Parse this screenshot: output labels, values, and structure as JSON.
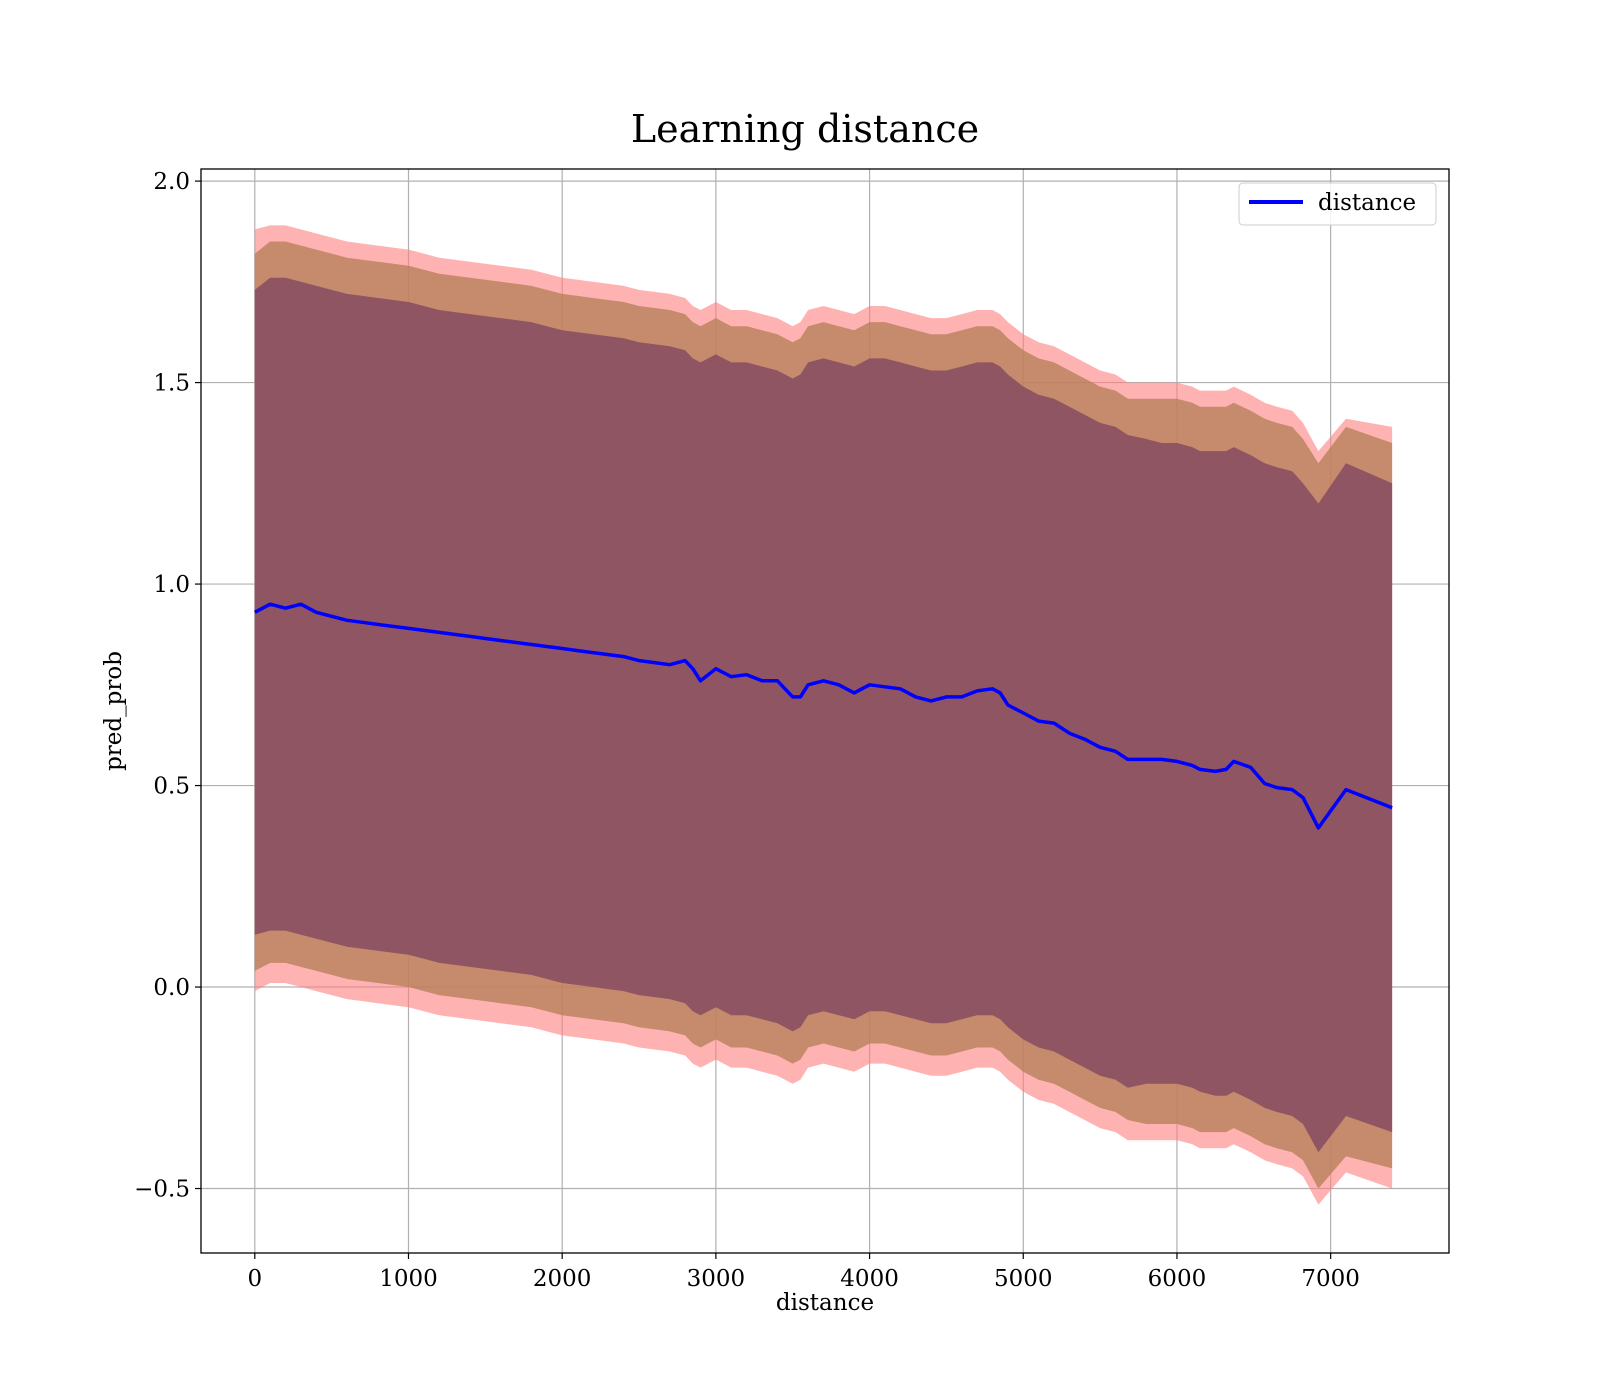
{
  "chart_data": {
    "type": "line",
    "title": "Learning distance",
    "xlabel": "distance",
    "ylabel": "pred_prob",
    "xlim": [
      -350,
      7770
    ],
    "ylim": [
      -0.66,
      2.03
    ],
    "grid": true,
    "legend_position": "top-right",
    "x_ticks": [
      "0",
      "1000",
      "2000",
      "3000",
      "4000",
      "5000",
      "6000",
      "7000"
    ],
    "x_tick_values": [
      0,
      1000,
      2000,
      3000,
      4000,
      5000,
      6000,
      7000
    ],
    "y_ticks": [
      "−0.5",
      "0.0",
      "0.5",
      "1.0",
      "1.5",
      "2.0"
    ],
    "y_tick_values": [
      -0.5,
      0.0,
      0.5,
      1.0,
      1.5,
      2.0
    ],
    "colors": {
      "line": "#0000ff",
      "outer_band": "#ff7f7f",
      "middle_band": "#b8805a",
      "inner_band": "#8a4f62"
    },
    "series": [
      {
        "name": "distance",
        "x": [
          0,
          100,
          200,
          300,
          400,
          500,
          600,
          700,
          800,
          900,
          1000,
          1100,
          1200,
          1300,
          1400,
          1500,
          1600,
          1700,
          1800,
          1900,
          2000,
          2100,
          2200,
          2300,
          2400,
          2500,
          2600,
          2700,
          2800,
          2850,
          2900,
          3000,
          3100,
          3200,
          3300,
          3400,
          3500,
          3550,
          3600,
          3700,
          3800,
          3900,
          4000,
          4100,
          4200,
          4300,
          4400,
          4500,
          4600,
          4700,
          4800,
          4850,
          4900,
          5000,
          5100,
          5200,
          5300,
          5400,
          5500,
          5600,
          5680,
          5800,
          5900,
          6000,
          6100,
          6150,
          6250,
          6320,
          6370,
          6480,
          6570,
          6650,
          6750,
          6820,
          6920,
          7100,
          7400
        ],
        "y": [
          0.93,
          0.95,
          0.94,
          0.95,
          0.93,
          0.92,
          0.91,
          0.905,
          0.9,
          0.895,
          0.89,
          0.885,
          0.88,
          0.875,
          0.87,
          0.865,
          0.86,
          0.855,
          0.85,
          0.845,
          0.84,
          0.835,
          0.83,
          0.825,
          0.82,
          0.81,
          0.805,
          0.8,
          0.81,
          0.79,
          0.76,
          0.79,
          0.77,
          0.775,
          0.76,
          0.76,
          0.72,
          0.72,
          0.75,
          0.76,
          0.75,
          0.73,
          0.75,
          0.745,
          0.74,
          0.72,
          0.71,
          0.72,
          0.72,
          0.735,
          0.74,
          0.73,
          0.7,
          0.68,
          0.66,
          0.655,
          0.63,
          0.615,
          0.595,
          0.585,
          0.565,
          0.565,
          0.565,
          0.56,
          0.55,
          0.54,
          0.535,
          0.54,
          0.56,
          0.545,
          0.505,
          0.495,
          0.49,
          0.47,
          0.395,
          0.49,
          0.445
        ],
        "band_outer_upper": [
          1.88,
          1.89,
          1.89,
          1.88,
          1.87,
          1.86,
          1.85,
          1.845,
          1.84,
          1.835,
          1.83,
          1.82,
          1.81,
          1.805,
          1.8,
          1.795,
          1.79,
          1.785,
          1.78,
          1.77,
          1.76,
          1.755,
          1.75,
          1.745,
          1.74,
          1.73,
          1.725,
          1.72,
          1.71,
          1.69,
          1.68,
          1.7,
          1.68,
          1.68,
          1.67,
          1.66,
          1.64,
          1.65,
          1.68,
          1.69,
          1.68,
          1.67,
          1.69,
          1.69,
          1.68,
          1.67,
          1.66,
          1.66,
          1.67,
          1.68,
          1.68,
          1.67,
          1.65,
          1.62,
          1.6,
          1.59,
          1.57,
          1.55,
          1.53,
          1.52,
          1.5,
          1.5,
          1.5,
          1.5,
          1.49,
          1.48,
          1.48,
          1.48,
          1.49,
          1.47,
          1.45,
          1.44,
          1.43,
          1.4,
          1.33,
          1.41,
          1.39
        ],
        "band_middle_upper": [
          1.82,
          1.85,
          1.85,
          1.84,
          1.83,
          1.82,
          1.81,
          1.805,
          1.8,
          1.795,
          1.79,
          1.78,
          1.77,
          1.765,
          1.76,
          1.755,
          1.75,
          1.745,
          1.74,
          1.73,
          1.72,
          1.715,
          1.71,
          1.705,
          1.7,
          1.69,
          1.685,
          1.68,
          1.67,
          1.65,
          1.64,
          1.66,
          1.64,
          1.64,
          1.63,
          1.62,
          1.6,
          1.61,
          1.64,
          1.65,
          1.64,
          1.63,
          1.65,
          1.65,
          1.64,
          1.63,
          1.62,
          1.62,
          1.63,
          1.64,
          1.64,
          1.63,
          1.61,
          1.58,
          1.56,
          1.55,
          1.53,
          1.51,
          1.49,
          1.48,
          1.46,
          1.46,
          1.46,
          1.46,
          1.45,
          1.44,
          1.44,
          1.44,
          1.45,
          1.43,
          1.41,
          1.4,
          1.39,
          1.36,
          1.3,
          1.39,
          1.35
        ],
        "band_inner_upper": [
          1.73,
          1.76,
          1.76,
          1.75,
          1.74,
          1.73,
          1.72,
          1.715,
          1.71,
          1.705,
          1.7,
          1.69,
          1.68,
          1.675,
          1.67,
          1.665,
          1.66,
          1.655,
          1.65,
          1.64,
          1.63,
          1.625,
          1.62,
          1.615,
          1.61,
          1.6,
          1.595,
          1.59,
          1.58,
          1.56,
          1.55,
          1.57,
          1.55,
          1.55,
          1.54,
          1.53,
          1.51,
          1.52,
          1.55,
          1.56,
          1.55,
          1.54,
          1.56,
          1.56,
          1.55,
          1.54,
          1.53,
          1.53,
          1.54,
          1.55,
          1.55,
          1.54,
          1.52,
          1.49,
          1.47,
          1.46,
          1.44,
          1.42,
          1.4,
          1.39,
          1.37,
          1.36,
          1.35,
          1.35,
          1.34,
          1.33,
          1.33,
          1.33,
          1.34,
          1.32,
          1.3,
          1.29,
          1.28,
          1.25,
          1.2,
          1.3,
          1.25
        ],
        "band_inner_lower": [
          0.13,
          0.14,
          0.14,
          0.13,
          0.12,
          0.11,
          0.1,
          0.095,
          0.09,
          0.085,
          0.08,
          0.07,
          0.06,
          0.055,
          0.05,
          0.045,
          0.04,
          0.035,
          0.03,
          0.02,
          0.01,
          0.005,
          0.0,
          -0.005,
          -0.01,
          -0.02,
          -0.025,
          -0.03,
          -0.04,
          -0.06,
          -0.07,
          -0.05,
          -0.07,
          -0.07,
          -0.08,
          -0.09,
          -0.11,
          -0.1,
          -0.07,
          -0.06,
          -0.07,
          -0.08,
          -0.06,
          -0.06,
          -0.07,
          -0.08,
          -0.09,
          -0.09,
          -0.08,
          -0.07,
          -0.07,
          -0.08,
          -0.1,
          -0.13,
          -0.15,
          -0.16,
          -0.18,
          -0.2,
          -0.22,
          -0.23,
          -0.25,
          -0.24,
          -0.24,
          -0.24,
          -0.25,
          -0.26,
          -0.27,
          -0.27,
          -0.26,
          -0.28,
          -0.3,
          -0.31,
          -0.32,
          -0.34,
          -0.41,
          -0.32,
          -0.36
        ],
        "band_middle_lower": [
          0.04,
          0.06,
          0.06,
          0.05,
          0.04,
          0.03,
          0.02,
          0.015,
          0.01,
          0.005,
          0.0,
          -0.01,
          -0.02,
          -0.025,
          -0.03,
          -0.035,
          -0.04,
          -0.045,
          -0.05,
          -0.06,
          -0.07,
          -0.075,
          -0.08,
          -0.085,
          -0.09,
          -0.1,
          -0.105,
          -0.11,
          -0.12,
          -0.14,
          -0.15,
          -0.13,
          -0.15,
          -0.15,
          -0.16,
          -0.17,
          -0.19,
          -0.18,
          -0.15,
          -0.14,
          -0.15,
          -0.16,
          -0.14,
          -0.14,
          -0.15,
          -0.16,
          -0.17,
          -0.17,
          -0.16,
          -0.15,
          -0.15,
          -0.16,
          -0.18,
          -0.21,
          -0.23,
          -0.24,
          -0.26,
          -0.28,
          -0.3,
          -0.31,
          -0.33,
          -0.34,
          -0.34,
          -0.34,
          -0.35,
          -0.36,
          -0.36,
          -0.36,
          -0.35,
          -0.37,
          -0.39,
          -0.4,
          -0.41,
          -0.43,
          -0.5,
          -0.42,
          -0.45
        ],
        "band_outer_lower": [
          -0.01,
          0.01,
          0.01,
          0.0,
          -0.01,
          -0.02,
          -0.03,
          -0.035,
          -0.04,
          -0.045,
          -0.05,
          -0.06,
          -0.07,
          -0.075,
          -0.08,
          -0.085,
          -0.09,
          -0.095,
          -0.1,
          -0.11,
          -0.12,
          -0.125,
          -0.13,
          -0.135,
          -0.14,
          -0.15,
          -0.155,
          -0.16,
          -0.17,
          -0.19,
          -0.2,
          -0.18,
          -0.2,
          -0.2,
          -0.21,
          -0.22,
          -0.24,
          -0.23,
          -0.2,
          -0.19,
          -0.2,
          -0.21,
          -0.19,
          -0.19,
          -0.2,
          -0.21,
          -0.22,
          -0.22,
          -0.21,
          -0.2,
          -0.2,
          -0.21,
          -0.23,
          -0.26,
          -0.28,
          -0.29,
          -0.31,
          -0.33,
          -0.35,
          -0.36,
          -0.38,
          -0.38,
          -0.38,
          -0.38,
          -0.39,
          -0.4,
          -0.4,
          -0.4,
          -0.39,
          -0.41,
          -0.43,
          -0.44,
          -0.45,
          -0.47,
          -0.54,
          -0.46,
          -0.5
        ]
      }
    ]
  }
}
